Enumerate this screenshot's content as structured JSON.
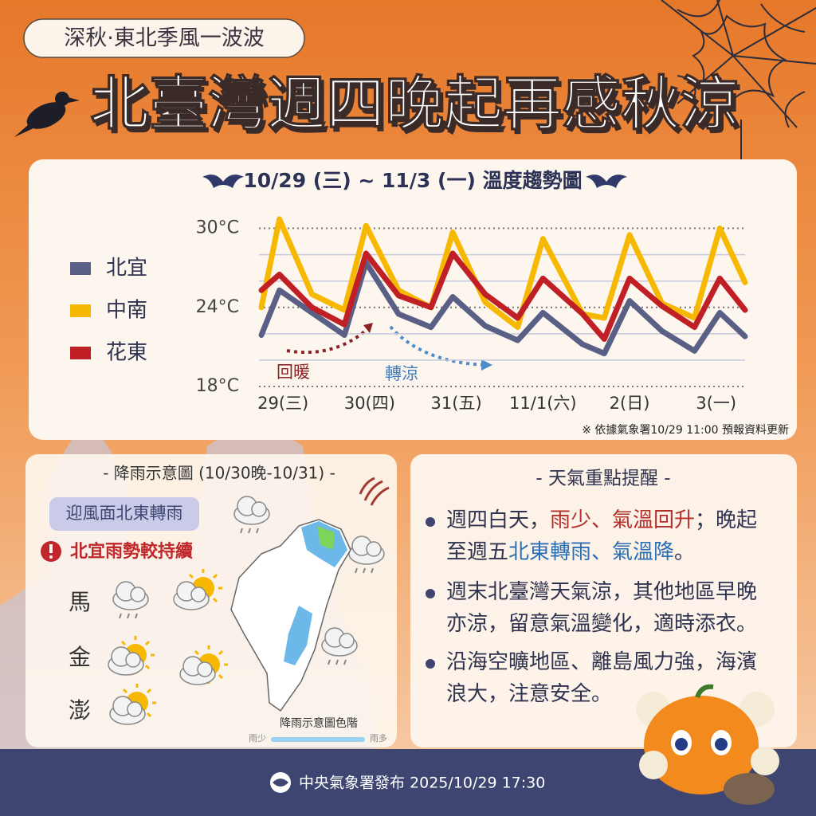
{
  "header": {
    "tag": "深秋·東北季風一波波",
    "title": "北臺灣週四晚起再感秋涼"
  },
  "chart_data": {
    "type": "line",
    "title": "10/29 (三) ~ 11/3 (一) 溫度趨勢圖",
    "x": [
      6,
      11,
      20,
      29,
      35,
      44,
      53,
      59,
      68,
      77,
      84,
      95,
      101,
      108,
      117,
      126,
      133,
      140
    ],
    "xlim": [
      6,
      140
    ],
    "xticks": [
      {
        "value": 12,
        "label": "29(三)"
      },
      {
        "value": 36,
        "label": "30(四)"
      },
      {
        "value": 60,
        "label": "31(五)"
      },
      {
        "value": 84,
        "label": "11/1(六)"
      },
      {
        "value": 108,
        "label": "2(日)"
      },
      {
        "value": 132,
        "label": "3(一)"
      }
    ],
    "ylim": [
      18,
      31
    ],
    "yticks": [
      {
        "value": 30,
        "label": "30°C"
      },
      {
        "value": 24,
        "label": "24°C"
      },
      {
        "value": 18,
        "label": "18°C"
      }
    ],
    "minor_gridlines": [
      20,
      22,
      26,
      28
    ],
    "series": [
      {
        "name": "北宜",
        "color": "#5a5f86",
        "values": [
          21.9,
          25.3,
          23.6,
          21.9,
          27.4,
          23.5,
          22.5,
          24.8,
          22.6,
          21.5,
          23.6,
          21.2,
          20.5,
          24.5,
          22.2,
          20.7,
          23.6,
          21.8
        ]
      },
      {
        "name": "中南",
        "color": "#f6b800",
        "values": [
          24,
          30.7,
          25,
          23.8,
          30.2,
          25.3,
          24,
          29.7,
          24.4,
          22.5,
          29.2,
          23.5,
          23.2,
          29.5,
          24.3,
          23.2,
          30,
          25.9
        ]
      },
      {
        "name": "花東",
        "color": "#c01f26",
        "values": [
          25.3,
          26.5,
          24,
          22.7,
          28.1,
          24.9,
          24,
          28.1,
          25,
          23.2,
          26.2,
          23.5,
          21.6,
          26.2,
          24.1,
          22.5,
          26.2,
          23.8
        ]
      }
    ],
    "annotations": [
      "回暖",
      "轉涼"
    ],
    "note": "※ 依據氣象署10/29 11:00 預報資料更新"
  },
  "rain": {
    "title": "- 降雨示意圖 (10/30晚-10/31) -",
    "badge": "迎風面北東轉雨",
    "alert": "北宜雨勢較持續",
    "islands": [
      "馬",
      "金",
      "澎"
    ],
    "scale_title": "降雨示意圖色階",
    "scale_low": "雨少",
    "scale_high": "雨多"
  },
  "notes": {
    "title": "- 天氣重點提醒 -",
    "items": [
      [
        {
          "text": "週四白天，"
        },
        {
          "text": "雨少、氣溫回升",
          "color": "#b32e2a"
        },
        {
          "text": "；晚起至週五"
        },
        {
          "text": "北東轉雨、氣溫降",
          "color": "#2a6fb5"
        },
        {
          "text": "。"
        }
      ],
      [
        {
          "text": "週末北臺灣天氣涼，其他地區早晚亦涼，留意氣溫變化，適時添衣。"
        }
      ],
      [
        {
          "text": "沿海空曠地區、離島風力強，海濱浪大，注意安全。"
        }
      ]
    ]
  },
  "footer": {
    "text": "中央氣象署發布 2025/10/29 17:30"
  }
}
